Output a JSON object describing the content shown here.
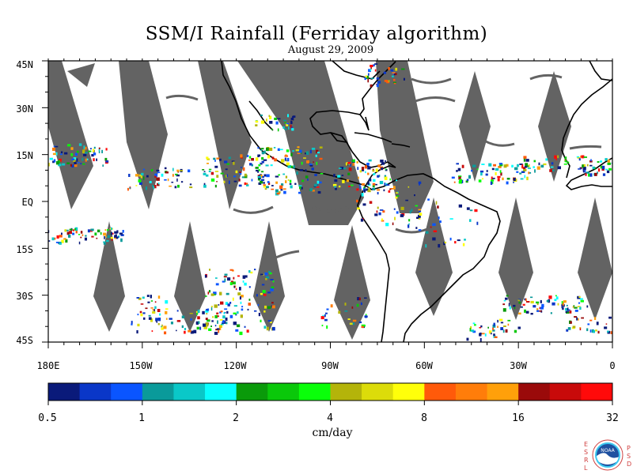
{
  "map": {
    "title": "SSM/I Rainfall (Ferriday algorithm)",
    "date": "August 29, 2009",
    "lat_labels": [
      "45N",
      "30N",
      "15N",
      "EQ",
      "15S",
      "30S",
      "45S"
    ],
    "lon_labels": [
      "180E",
      "150W",
      "120W",
      "90W",
      "60W",
      "30W",
      "0"
    ],
    "colors": {
      "swath_gap": "#636363",
      "coast": "#000000"
    }
  },
  "colorbar": {
    "units": "cm/day",
    "tick_labels": [
      "0.5",
      "1",
      "2",
      "4",
      "8",
      "16",
      "32"
    ],
    "colors": [
      "#0a1a7a",
      "#0a37c8",
      "#0a55ff",
      "#0a9a9a",
      "#0ac8c8",
      "#0affff",
      "#0a9a0a",
      "#0ac80a",
      "#0aff0a",
      "#b4b40a",
      "#dcdc0a",
      "#ffff0a",
      "#ff5a0a",
      "#ff7d0a",
      "#ffa00a",
      "#9a0a0a",
      "#c80a0a",
      "#ff0a0a"
    ]
  },
  "logo": {
    "left_letters": "ESRL",
    "right_letters": "PSD",
    "name": "NOAA"
  }
}
